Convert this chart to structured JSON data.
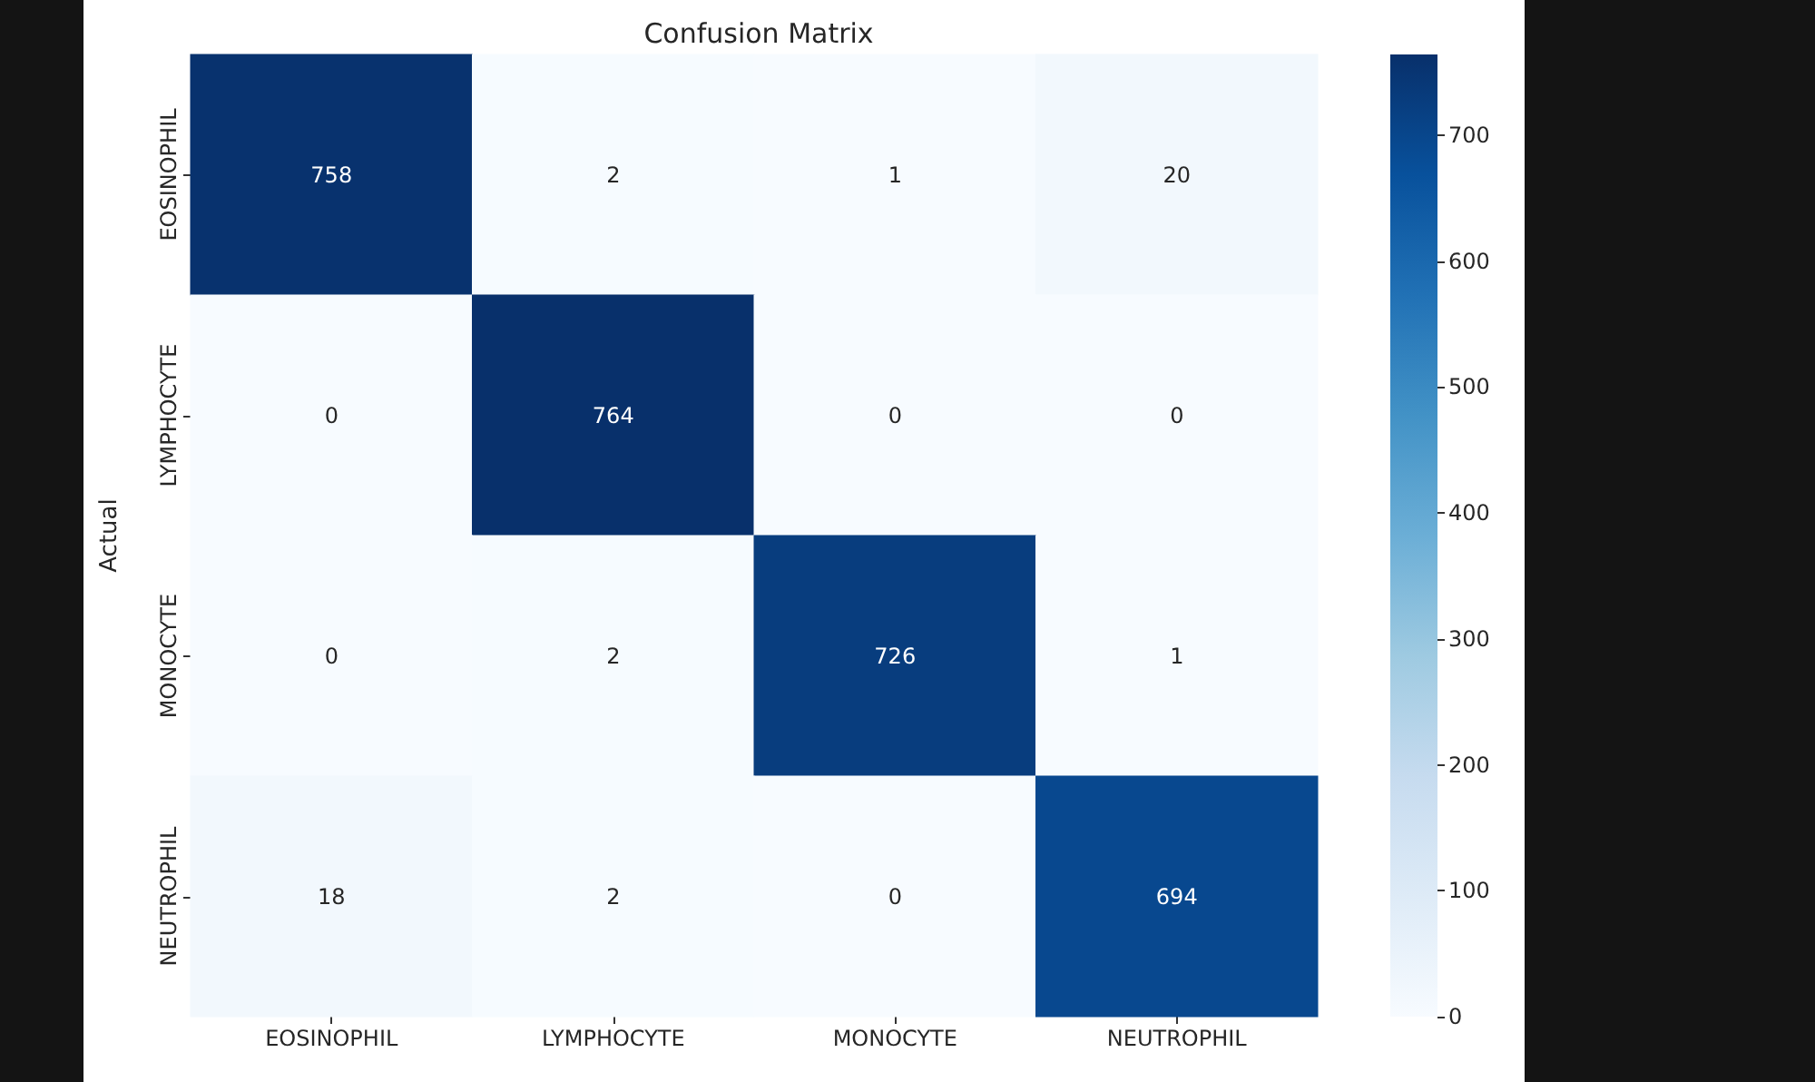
{
  "chart_data": {
    "type": "heatmap",
    "title": "Confusion Matrix",
    "ylabel": "Actual",
    "categories": [
      "EOSINOPHIL",
      "LYMPHOCYTE",
      "MONOCYTE",
      "NEUTROPHIL"
    ],
    "y_categories": [
      "EOSINOPHIL",
      "LYMPHOCYTE",
      "MONOCYTE",
      "NEUTROPHIL"
    ],
    "cells": [
      [
        758,
        2,
        1,
        20
      ],
      [
        0,
        764,
        0,
        0
      ],
      [
        0,
        2,
        726,
        1
      ],
      [
        18,
        2,
        0,
        694
      ]
    ],
    "clim": [
      0,
      764
    ],
    "cticks": [
      0,
      100,
      200,
      300,
      400,
      500,
      600,
      700
    ],
    "data_labels": true
  }
}
